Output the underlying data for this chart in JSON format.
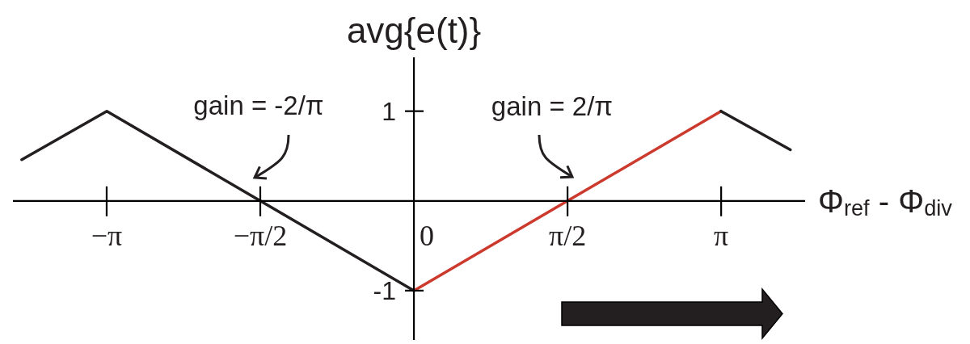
{
  "chart_data": {
    "type": "line",
    "xlabel": "Φ$_{ref}$ - Φ$_{div}$",
    "ylabel": "avg{e(t)}",
    "series": [
      {
        "color": "#231f20",
        "x": [
          -4.01,
          -3.14,
          0
        ],
        "values": [
          0.46,
          1,
          -1
        ]
      },
      {
        "color": "#cc3a2e",
        "x": [
          0,
          3.14
        ],
        "values": [
          -1,
          1
        ]
      },
      {
        "color": "#231f20",
        "x": [
          3.14,
          3.85
        ],
        "values": [
          1,
          0.57
        ]
      }
    ],
    "xlim": [
      -4.1,
      4.0
    ],
    "ylim": [
      -1.55,
      1.6
    ],
    "xticks": [
      {
        "value": -3.1416,
        "label": "−π"
      },
      {
        "value": -1.5708,
        "label": "−π/2"
      },
      0,
      {
        "value": 1.5708,
        "label": "π/2"
      },
      {
        "value": 3.1416,
        "label": "π"
      }
    ],
    "yticks": [
      -1,
      1
    ],
    "annotations": [
      "gain = -2/π",
      "gain = 2/π"
    ]
  }
}
